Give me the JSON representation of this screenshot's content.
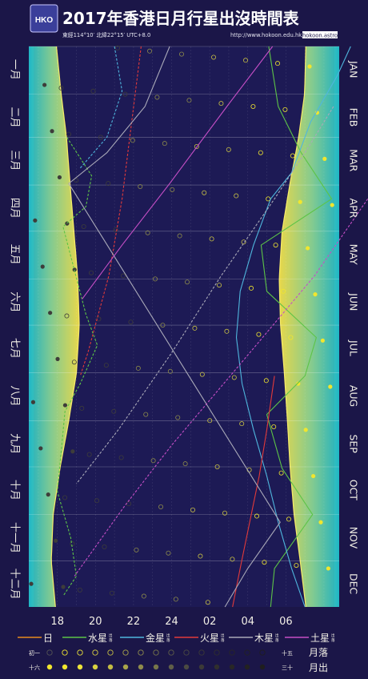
{
  "header": {
    "logo_text": "HKO",
    "title": "2017年香港日月行星出沒時間表",
    "coords": "東經114°10′ 北緯22°15′ UTC+8.0",
    "url": "http://www.hokoon.edu.hk/",
    "brand": "hokoon.astro"
  },
  "colors": {
    "background": "#1b1648",
    "band_cyan": "#1fb9c8",
    "band_yellow": "#f2e14a",
    "full_moon": "#f1e62e",
    "sun_line": "#e88a1e",
    "mercury": "#5dc447",
    "venus": "#4fb6dd",
    "mars": "#e23a3a",
    "jupiter": "#a9a9b8",
    "saturn": "#c64fc6"
  },
  "chart_data": {
    "type": "scatter",
    "title": "2017年香港日月行星出沒時間表",
    "x_axis": {
      "unit": "hour (UTC+8)",
      "range": [
        16.5,
        32.8
      ],
      "ticks": [
        "18",
        "20",
        "22",
        "24",
        "02",
        "04",
        "06"
      ]
    },
    "y_axis": {
      "range": [
        "2017-01-01",
        "2017-12-31"
      ]
    },
    "months_cn": [
      "一月",
      "二月",
      "三月",
      "四月",
      "五月",
      "六月",
      "七月",
      "八月",
      "九月",
      "十月",
      "十一月",
      "十二月"
    ],
    "months_en": [
      "JAN",
      "FEB",
      "MAR",
      "APR",
      "MAY",
      "JUN",
      "JUL",
      "AUG",
      "SEP",
      "OCT",
      "NOV",
      "DEC"
    ],
    "sunset": [
      [
        1,
        17.95
      ],
      [
        32,
        18.2
      ],
      [
        60,
        18.48
      ],
      [
        91,
        18.67
      ],
      [
        121,
        18.87
      ],
      [
        152,
        19.07
      ],
      [
        182,
        19.15
      ],
      [
        213,
        19.0
      ],
      [
        244,
        18.6
      ],
      [
        274,
        18.15
      ],
      [
        305,
        17.78
      ],
      [
        335,
        17.68
      ],
      [
        365,
        17.9
      ]
    ],
    "sunrise": [
      [
        1,
        7.05
      ],
      [
        32,
        6.98
      ],
      [
        60,
        6.67
      ],
      [
        91,
        6.2
      ],
      [
        121,
        5.8
      ],
      [
        152,
        5.65
      ],
      [
        182,
        5.72
      ],
      [
        213,
        5.92
      ],
      [
        244,
        6.08
      ],
      [
        274,
        6.22
      ],
      [
        305,
        6.43
      ],
      [
        335,
        6.75
      ],
      [
        365,
        7.05
      ]
    ],
    "series": [
      {
        "name": "水星",
        "key": "mercury",
        "rise": [
          [
            1,
            5.1
          ],
          [
            40,
            5.6
          ],
          [
            70,
            6.8
          ],
          [
            100,
            8.4
          ],
          [
            130,
            4.7
          ],
          [
            160,
            5.0
          ],
          [
            190,
            7.6
          ],
          [
            215,
            7.0
          ],
          [
            240,
            5.0
          ],
          [
            275,
            5.8
          ],
          [
            305,
            7.4
          ],
          [
            340,
            5.4
          ],
          [
            365,
            5.2
          ]
        ],
        "set": [
          [
            60,
            18.5
          ],
          [
            85,
            19.8
          ],
          [
            105,
            19.5
          ],
          [
            118,
            18.3
          ],
          [
            175,
            19.5
          ],
          [
            195,
            20.1
          ],
          [
            220,
            19.2
          ],
          [
            238,
            18.4
          ],
          [
            290,
            18.0
          ],
          [
            320,
            18.7
          ],
          [
            345,
            19.0
          ],
          [
            358,
            18.3
          ]
        ]
      },
      {
        "name": "金星",
        "key": "venus",
        "rise": [
          [
            1,
            9.4
          ],
          [
            20,
            8.7
          ],
          [
            50,
            7.3
          ],
          [
            83,
            6.3
          ],
          [
            100,
            5.2
          ],
          [
            130,
            4.3
          ],
          [
            160,
            3.6
          ],
          [
            190,
            3.4
          ],
          [
            220,
            3.7
          ],
          [
            250,
            4.3
          ],
          [
            280,
            5.0
          ],
          [
            310,
            5.6
          ],
          [
            340,
            6.3
          ],
          [
            365,
            7.0
          ]
        ],
        "set": [
          [
            1,
            21.0
          ],
          [
            30,
            21.4
          ],
          [
            60,
            20.6
          ],
          [
            80,
            19.2
          ]
        ]
      },
      {
        "name": "火星",
        "key": "mars",
        "rise": [
          [
            215,
            5.4
          ],
          [
            250,
            5.0
          ],
          [
            280,
            4.6
          ],
          [
            310,
            4.1
          ],
          [
            340,
            3.6
          ],
          [
            365,
            3.2
          ]
        ],
        "set": [
          [
            1,
            22.4
          ],
          [
            60,
            21.8
          ],
          [
            100,
            21.4
          ],
          [
            150,
            20.7
          ],
          [
            200,
            19.6
          ],
          [
            215,
            19.2
          ]
        ]
      },
      {
        "name": "木星",
        "key": "jupiter",
        "rise": [
          [
            1,
            23.9
          ],
          [
            40,
            22.6
          ],
          [
            70,
            20.6
          ],
          [
            90,
            18.6
          ],
          [
            310,
            5.7
          ],
          [
            340,
            4.0
          ],
          [
            365,
            2.8
          ]
        ],
        "set": [
          [
            40,
            8.5
          ],
          [
            70,
            7.0
          ],
          [
            100,
            5.4
          ],
          [
            150,
            2.6
          ],
          [
            200,
            24.0
          ],
          [
            250,
            21.2
          ],
          [
            285,
            19.0
          ]
        ]
      },
      {
        "name": "土星",
        "key": "saturn",
        "rise": [
          [
            1,
            5.3
          ],
          [
            40,
            2.9
          ],
          [
            90,
            23.9
          ],
          [
            130,
            21.4
          ],
          [
            165,
            19.3
          ]
        ],
        "set": [
          [
            100,
            10.3
          ],
          [
            150,
            7.5
          ],
          [
            200,
            4.1
          ],
          [
            260,
            24.0
          ],
          [
            300,
            21.5
          ],
          [
            345,
            18.9
          ]
        ]
      }
    ],
    "moon_phase_labels": {
      "new": "初一",
      "first_full": "十五",
      "full": "十六",
      "last": "三十"
    },
    "moonset_label": "月落",
    "moonrise_label": "月出"
  },
  "legend": {
    "sun": "日",
    "mercury": "水星",
    "venus": "金星",
    "mars": "火星",
    "jupiter": "木星",
    "saturn": "土星",
    "rise": "出",
    "set": "落"
  }
}
